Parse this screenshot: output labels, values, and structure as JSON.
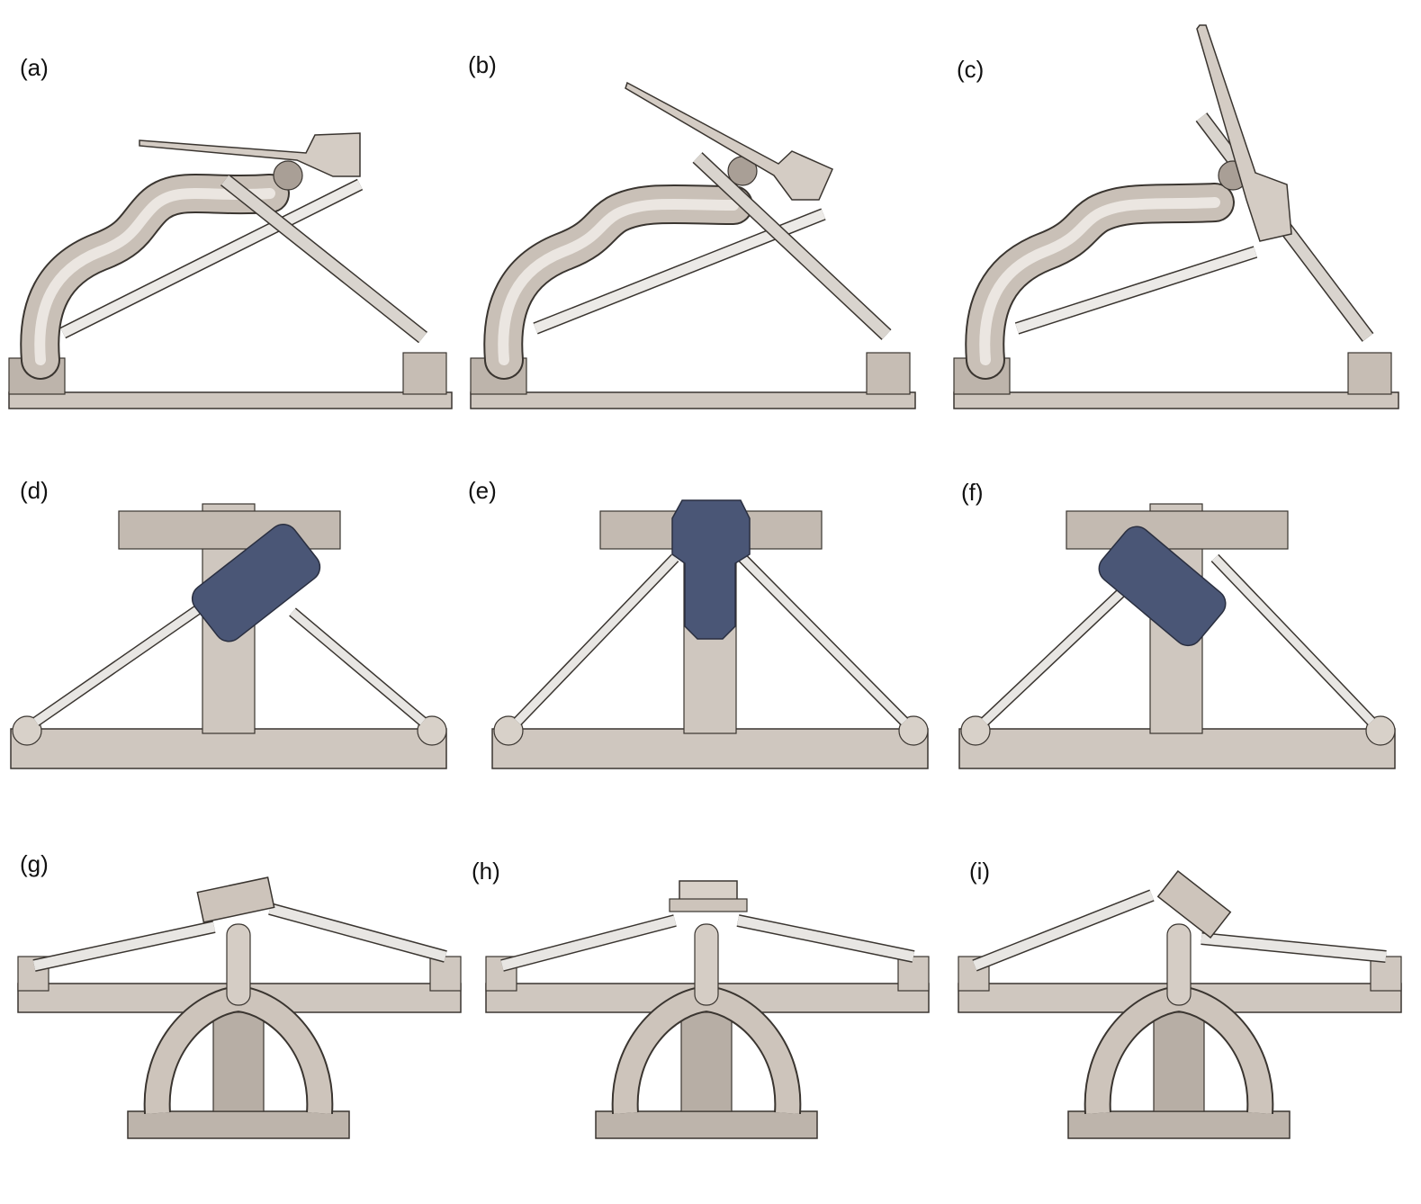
{
  "figure": {
    "panels": [
      {
        "id": "a",
        "label": "(a)",
        "view": "side",
        "tilt": "flat"
      },
      {
        "id": "b",
        "label": "(b)",
        "view": "side",
        "tilt": "moderate"
      },
      {
        "id": "c",
        "label": "(c)",
        "view": "side",
        "tilt": "steep"
      },
      {
        "id": "d",
        "label": "(d)",
        "view": "top",
        "tilt": "left"
      },
      {
        "id": "e",
        "label": "(e)",
        "view": "top",
        "tilt": "neutral"
      },
      {
        "id": "f",
        "label": "(f)",
        "view": "top",
        "tilt": "right"
      },
      {
        "id": "g",
        "label": "(g)",
        "view": "front",
        "tilt": "left"
      },
      {
        "id": "h",
        "label": "(h)",
        "view": "front",
        "tilt": "neutral"
      },
      {
        "id": "i",
        "label": "(i)",
        "view": "front",
        "tilt": "right"
      }
    ],
    "colors": {
      "metal": "#cfc7bf",
      "metal_dark": "#8e847c",
      "metal_light": "#eae6e1",
      "footplate": "#4a5676",
      "actuator": "#e9eae9",
      "outline": "#3a3530"
    }
  }
}
